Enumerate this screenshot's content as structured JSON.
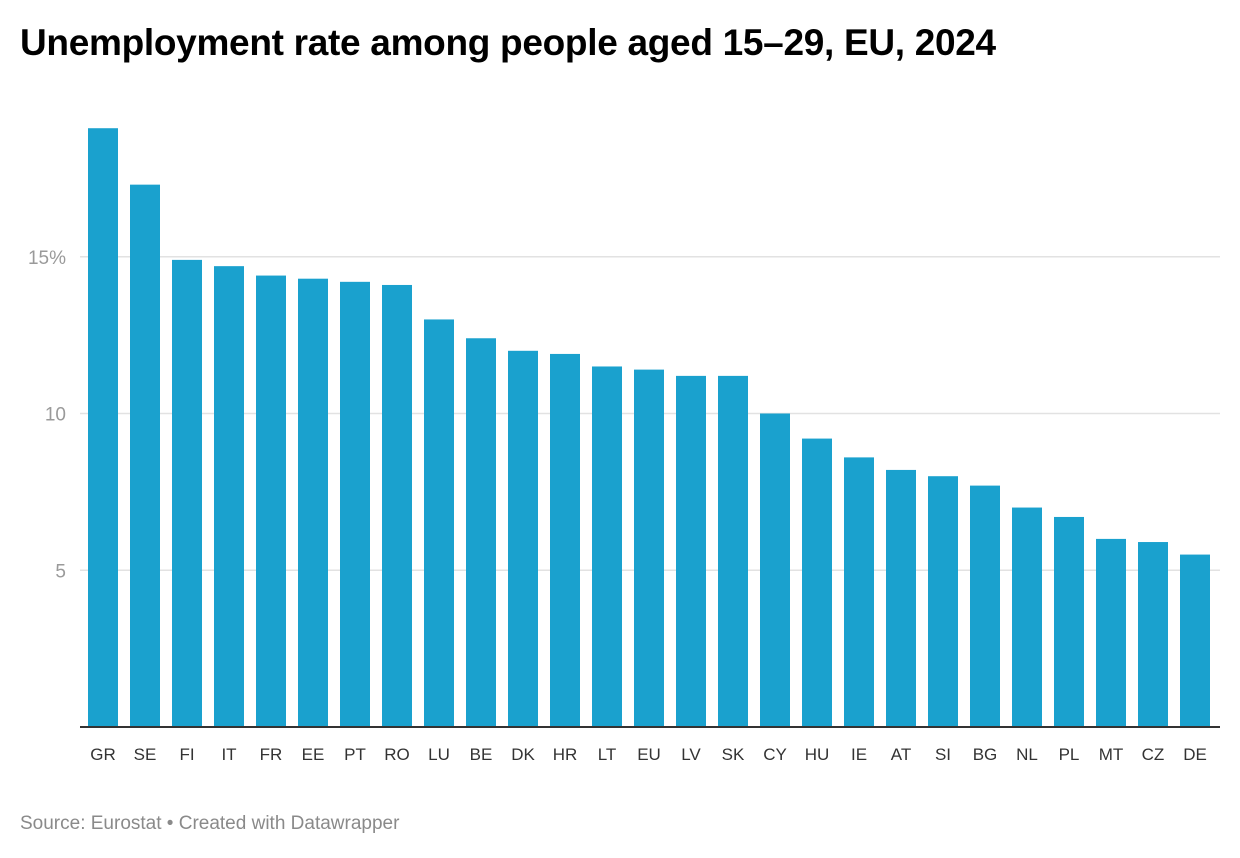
{
  "colors": {
    "bar": "#1aa1ce",
    "grid": "#e2e2e2",
    "axis": "#333333"
  },
  "chart_data": {
    "type": "bar",
    "title": "Unemployment rate among people aged 15–29, EU, 2024",
    "xlabel": "",
    "ylabel": "",
    "ylim": [
      0,
      19
    ],
    "yticks": [
      {
        "value": 5,
        "label": "5"
      },
      {
        "value": 10,
        "label": "10"
      },
      {
        "value": 15,
        "label": "15%"
      }
    ],
    "grid": true,
    "categories": [
      "GR",
      "SE",
      "FI",
      "IT",
      "FR",
      "EE",
      "PT",
      "RO",
      "LU",
      "BE",
      "DK",
      "HR",
      "LT",
      "EU",
      "LV",
      "SK",
      "CY",
      "HU",
      "IE",
      "AT",
      "SI",
      "BG",
      "NL",
      "PL",
      "MT",
      "CZ",
      "DE"
    ],
    "values": [
      19.1,
      17.3,
      14.9,
      14.7,
      14.4,
      14.3,
      14.2,
      14.1,
      13.0,
      12.4,
      12.0,
      11.9,
      11.5,
      11.4,
      11.2,
      11.2,
      10.0,
      9.2,
      8.6,
      8.2,
      8.0,
      7.7,
      7.0,
      6.7,
      6.0,
      5.9,
      5.5
    ]
  },
  "footer": {
    "text": "Source: Eurostat • Created with Datawrapper"
  }
}
